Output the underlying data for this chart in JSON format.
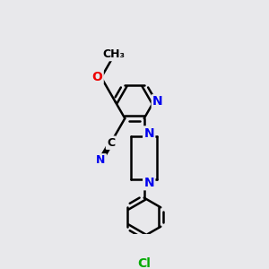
{
  "bg_color": "#e8e8eb",
  "bond_color": "#000000",
  "bond_width": 1.8,
  "atom_colors": {
    "N": "#0000ee",
    "O": "#ee0000",
    "Cl": "#00aa00",
    "C": "#000000"
  },
  "font_size": 10
}
